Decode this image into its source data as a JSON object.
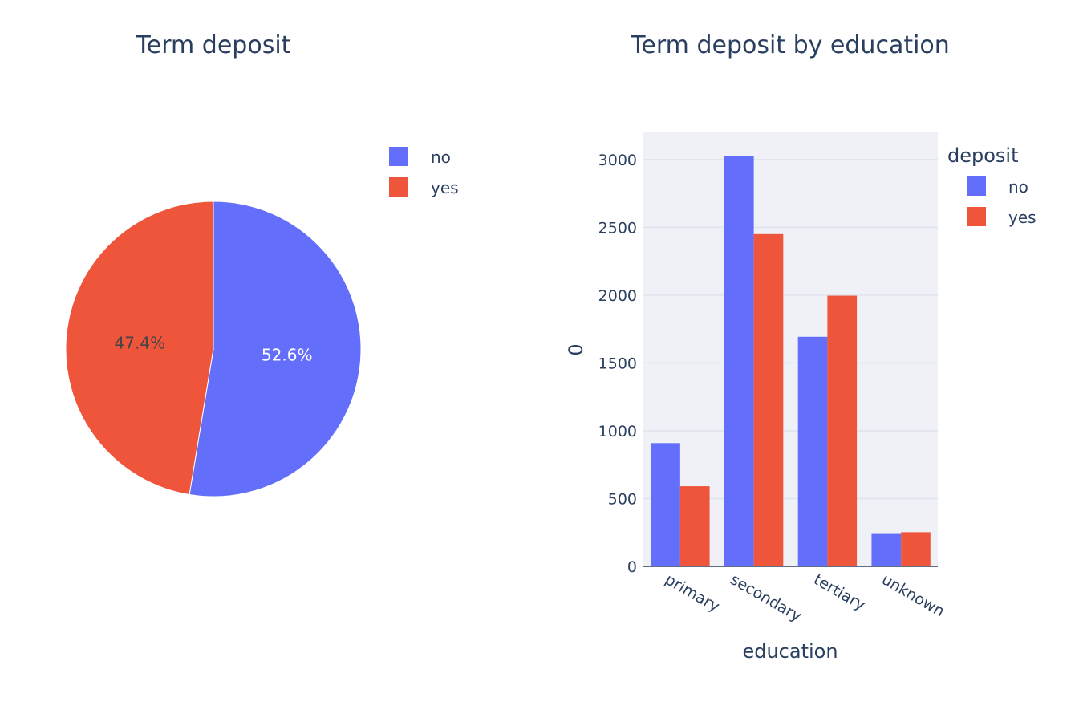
{
  "colors": {
    "no": "#636efa",
    "yes": "#ef553b",
    "plot_bg": "#eff1f7",
    "grid": "#dfe3ec",
    "text": "#2a3f5f",
    "pie_label_dark": "#444444",
    "pie_label_light": "#ffffff"
  },
  "chart_data": [
    {
      "type": "pie",
      "title": "Term deposit",
      "labels": [
        "no",
        "yes"
      ],
      "values": [
        52.6,
        47.4
      ],
      "value_labels": [
        "52.6%",
        "47.4%"
      ],
      "direction": "clockwise",
      "start_angle_deg": 0,
      "legend": {
        "placement": "top-right",
        "entries": [
          "no",
          "yes"
        ]
      }
    },
    {
      "type": "bar",
      "barmode": "group",
      "title": "Term deposit by education",
      "xlabel": "education",
      "ylabel": "0",
      "categories": [
        "primary",
        "secondary",
        "tertiary",
        "unknown"
      ],
      "series": [
        {
          "name": "no",
          "values": [
            909,
            3027,
            1693,
            245
          ]
        },
        {
          "name": "yes",
          "values": [
            591,
            2450,
            1996,
            252
          ]
        }
      ],
      "ylim": [
        0,
        3200
      ],
      "yticks": [
        0,
        500,
        1000,
        1500,
        2000,
        2500,
        3000
      ],
      "ytick_labels": [
        "0",
        "500",
        "1000",
        "1500",
        "2000",
        "2500",
        "3000"
      ],
      "grid": true,
      "legend": {
        "title": "deposit",
        "placement": "top-right",
        "entries": [
          "no",
          "yes"
        ]
      }
    }
  ]
}
